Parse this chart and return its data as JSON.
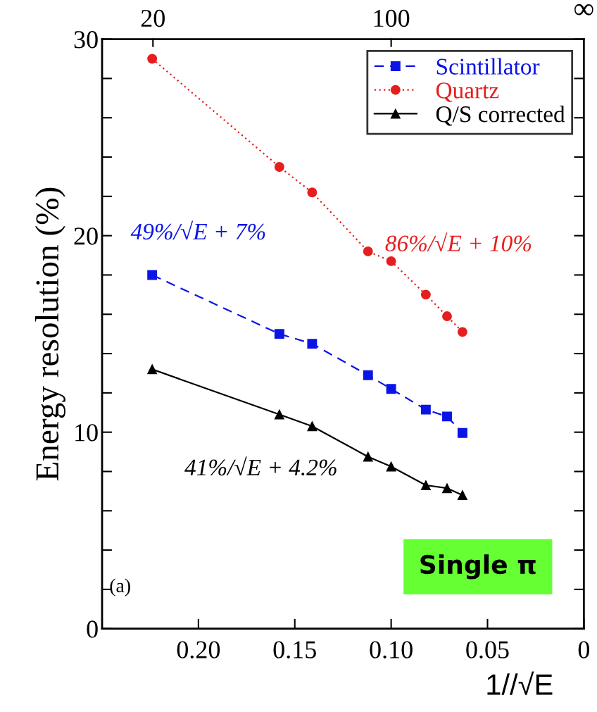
{
  "chart_data": {
    "type": "line",
    "ylabel": "Energy resolution (%)",
    "xlabel": "1//√E",
    "xlim": [
      0.25,
      0
    ],
    "xticks": [
      {
        "value": 0.2,
        "label": "0.20"
      },
      {
        "value": 0.15,
        "label": "0.15"
      },
      {
        "value": 0.1,
        "label": "0.10"
      },
      {
        "value": 0.05,
        "label": "0.05"
      },
      0
    ],
    "ylim": [
      0,
      30
    ],
    "yticks": [
      0,
      {
        "value": 2,
        "label": null
      },
      {
        "value": 4,
        "label": null
      },
      {
        "value": 6,
        "label": null
      },
      {
        "value": 8,
        "label": null
      },
      10,
      {
        "value": 12,
        "label": null
      },
      {
        "value": 14,
        "label": null
      },
      {
        "value": 16,
        "label": null
      },
      {
        "value": 18,
        "label": null
      },
      20,
      {
        "value": 22,
        "label": null
      },
      {
        "value": 24,
        "label": null
      },
      {
        "value": 26,
        "label": null
      },
      {
        "value": 28,
        "label": null
      },
      30
    ],
    "x": [
      0.224,
      0.158,
      0.141,
      0.112,
      0.1,
      0.082,
      0.071,
      0.063
    ],
    "series": [
      {
        "name": "Scintillator",
        "color": "#0a14e6",
        "marker": "square",
        "line_style": "dashed",
        "values": [
          18.0,
          15.0,
          14.5,
          12.9,
          12.2,
          11.15,
          10.8,
          9.96
        ]
      },
      {
        "name": "Quartz",
        "color": "#e61e1e",
        "marker": "circle",
        "line_style": "dotted",
        "values": [
          29.0,
          23.5,
          22.2,
          19.2,
          18.7,
          17.0,
          15.9,
          15.1
        ]
      },
      {
        "name": "Q/S corrected",
        "color": "#000000",
        "marker": "triangle",
        "line_style": "solid",
        "values": [
          13.2,
          10.9,
          10.3,
          8.75,
          8.25,
          7.3,
          7.15,
          6.8
        ]
      }
    ],
    "legend": "top right",
    "grid": false,
    "annotations": [
      "49%/√E + 7%",
      "86%/√E + 10%",
      "41%/√E + 4.2%",
      "20",
      "100",
      "∞",
      "(a)",
      "Single π"
    ]
  }
}
